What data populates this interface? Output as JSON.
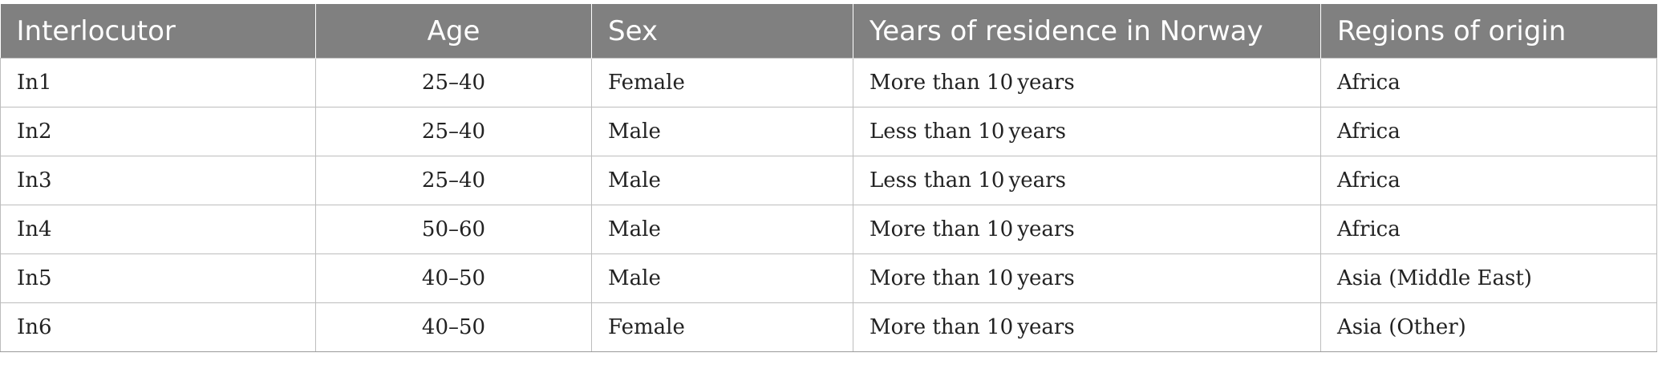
{
  "table": {
    "headers": [
      "Interlocutor",
      "Age",
      "Sex",
      "Years of residence in Norway",
      "Regions of origin"
    ],
    "rows": [
      [
        "In1",
        "25–40",
        "Female",
        "More than 10 years",
        "Africa"
      ],
      [
        "In2",
        "25–40",
        "Male",
        "Less than 10 years",
        "Africa"
      ],
      [
        "In3",
        "25–40",
        "Male",
        "Less than 10 years",
        "Africa"
      ],
      [
        "In4",
        "50–60",
        "Male",
        "More than 10 years",
        "Africa"
      ],
      [
        "In5",
        "40–50",
        "Male",
        "More than 10 years",
        "Asia (Middle East)"
      ],
      [
        "In6",
        "40–50",
        "Female",
        "More than 10 years",
        "Asia (Other)"
      ]
    ]
  },
  "colors": {
    "header_bg": "#808080",
    "header_text": "#ffffff",
    "grid": "#bdbdbd"
  }
}
